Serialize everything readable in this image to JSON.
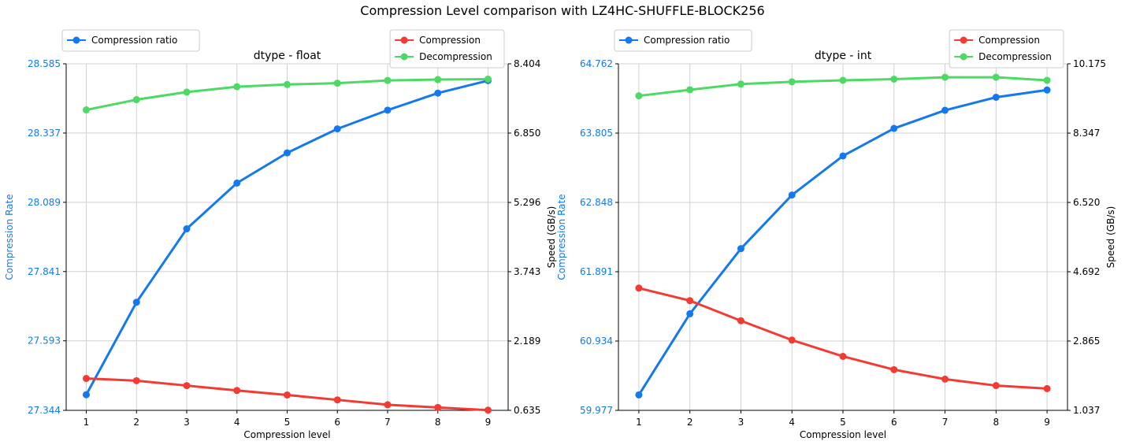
{
  "figure": {
    "title": "Compression Level comparison with LZ4HC-SHUFFLE-BLOCK256"
  },
  "colors": {
    "ratio": "#1479ef",
    "compression": "#f33b33",
    "decompression": "#4cd964",
    "left_axis_text": "#1479ef",
    "grid": "#d0d0d0"
  },
  "chart_data": [
    {
      "type": "line",
      "title": "dtype - float",
      "xlabel": "Compression level",
      "ylabel": "Compression Rate",
      "y2label": "Speed (GB/s)",
      "x": [
        1,
        2,
        3,
        4,
        5,
        6,
        7,
        8,
        9
      ],
      "xlim": [
        0.6,
        9.4
      ],
      "ylim": [
        27.344,
        28.585
      ],
      "y2lim": [
        0.635,
        8.404
      ],
      "yticks": [
        "27.344",
        "27.593",
        "27.841",
        "28.089",
        "28.337",
        "28.585"
      ],
      "y2ticks": [
        "0.635",
        "2.189",
        "3.743",
        "5.296",
        "6.850",
        "8.404"
      ],
      "series": [
        {
          "name": "Compression ratio",
          "axis": "left",
          "values": [
            27.4,
            27.731,
            27.994,
            28.158,
            28.266,
            28.352,
            28.419,
            28.48,
            28.525
          ]
        },
        {
          "name": "Compression",
          "axis": "right",
          "values": [
            1.35,
            1.3,
            1.19,
            1.08,
            0.98,
            0.87,
            0.76,
            0.7,
            0.64
          ]
        },
        {
          "name": "Decompression",
          "axis": "right",
          "values": [
            7.37,
            7.6,
            7.77,
            7.89,
            7.94,
            7.97,
            8.03,
            8.05,
            8.06
          ]
        }
      ],
      "legend_left": "top-left",
      "legend_right": "top-right",
      "grid": true
    },
    {
      "type": "line",
      "title": "dtype - int",
      "xlabel": "Compression level",
      "ylabel": "Compression Rate",
      "y2label": "Speed (GB/s)",
      "x": [
        1,
        2,
        3,
        4,
        5,
        6,
        7,
        8,
        9
      ],
      "xlim": [
        0.6,
        9.4
      ],
      "ylim": [
        59.977,
        64.762
      ],
      "y2lim": [
        1.037,
        10.175
      ],
      "yticks": [
        "59.977",
        "60.934",
        "61.891",
        "62.848",
        "63.805",
        "64.762"
      ],
      "y2ticks": [
        "1.037",
        "2.865",
        "4.692",
        "6.520",
        "8.347",
        "10.175"
      ],
      "series": [
        {
          "name": "Compression ratio",
          "axis": "left",
          "values": [
            60.19,
            61.31,
            62.21,
            62.95,
            63.49,
            63.87,
            64.12,
            64.3,
            64.4
          ]
        },
        {
          "name": "Compression",
          "axis": "right",
          "values": [
            4.26,
            3.93,
            3.4,
            2.89,
            2.46,
            2.11,
            1.86,
            1.69,
            1.61
          ]
        },
        {
          "name": "Decompression",
          "axis": "right",
          "values": [
            9.33,
            9.49,
            9.64,
            9.7,
            9.74,
            9.77,
            9.82,
            9.82,
            9.74
          ]
        }
      ],
      "legend_left": "top-left",
      "legend_right": "top-right",
      "grid": true
    }
  ]
}
